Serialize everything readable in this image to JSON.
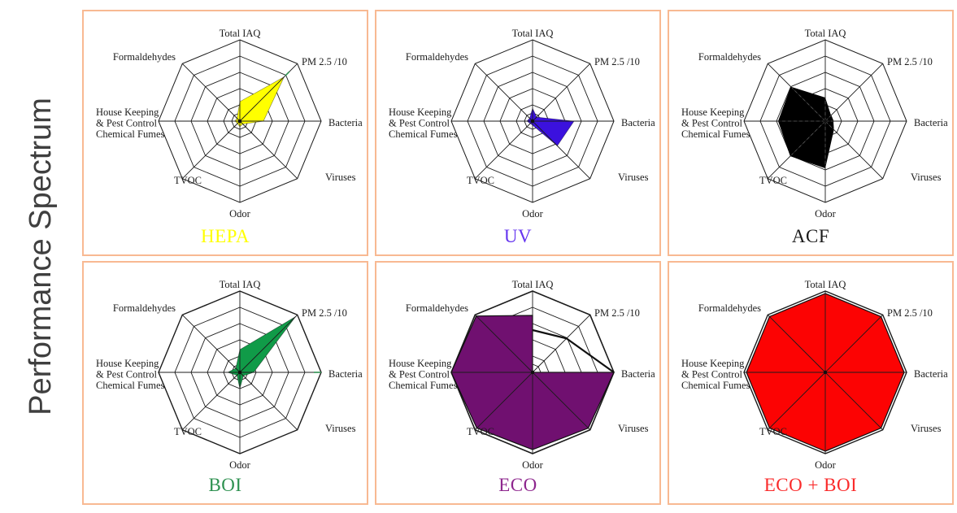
{
  "page": {
    "title_vertical": "Performance Spectrum"
  },
  "colors": {
    "panel_border": "#F8B992",
    "grid_line": "#1b1b1b",
    "side_title_text": "#3F3F3F",
    "background": "#FFFFFF"
  },
  "axes": [
    "Total IAQ",
    "PM 2.5 /10",
    "Bacteria",
    "Viruses",
    "Odor",
    "TVOC",
    "House Keeping\n& Pest Control\nChemical Fumes",
    "Formaldehydes"
  ],
  "chart_data": [
    {
      "type": "radar",
      "title": "HEPA",
      "fill": "#FFFF00",
      "label_color": "#FFFF00",
      "outline": "rgba(0,0,0,0.45)",
      "outline_w": 0.7,
      "outer_ring_w": 1.0,
      "max": 5,
      "rings": [
        0.5,
        1,
        2,
        3,
        4,
        5
      ],
      "values": [
        1.2,
        3.85,
        1.45,
        0.25,
        0.35,
        0.2,
        0.3,
        0.25
      ],
      "ticks": [
        {
          "axis": 1,
          "from": 3.95,
          "to": 4.3,
          "color": "#2E9150"
        }
      ]
    },
    {
      "type": "radar",
      "title": "UV",
      "fill": "#3B11DE",
      "label_color": "#6535EF",
      "outline": "rgba(0,0,0,0.45)",
      "outline_w": 0.7,
      "outer_ring_w": 1.0,
      "max": 5,
      "rings": [
        0.5,
        1,
        2,
        3,
        4,
        5
      ],
      "values": [
        0.8,
        0.35,
        2.55,
        2.15,
        0.25,
        0.2,
        0.35,
        0.25
      ],
      "ticks": []
    },
    {
      "type": "radar",
      "title": "ACF",
      "fill": "#000000",
      "label_color": "#1A1A1A",
      "outline": "none",
      "outline_w": 0,
      "outer_ring_w": 1.0,
      "white_dashes": true,
      "max": 5,
      "rings": [
        0.5,
        1,
        2,
        3,
        4,
        5
      ],
      "values": [
        1.45,
        0.5,
        0.5,
        0.75,
        2.9,
        3.05,
        2.9,
        3.0
      ],
      "ticks": []
    },
    {
      "type": "radar",
      "title": "BOI",
      "fill": "#109B48",
      "label_color": "#2E9150",
      "outline": "rgba(0,0,0,0.5)",
      "outline_w": 0.7,
      "outer_ring_w": 1.4,
      "max": 5,
      "rings": [
        0.5,
        1,
        2,
        3,
        4,
        5
      ],
      "values": [
        1.4,
        4.85,
        0.85,
        0.3,
        1.0,
        0.25,
        0.75,
        0.35
      ],
      "ticks": [
        {
          "axis": 2,
          "from": 4.55,
          "to": 5.0,
          "color": "#2E9150"
        }
      ]
    },
    {
      "type": "radar",
      "title": "ECO",
      "fill": "#701070",
      "label_color": "#8E278E",
      "outline": "#101010",
      "outline_w": 1.2,
      "outer_ring_w": 1.6,
      "max": 5,
      "rings": [
        0.5,
        1,
        2,
        3,
        4,
        5
      ],
      "values": [
        3.5,
        0,
        5,
        4.85,
        4.75,
        4.85,
        5,
        4.9
      ],
      "overlay": {
        "axes": [
          0,
          1,
          2
        ],
        "values": [
          2.6,
          2.95,
          5
        ],
        "color": "#101010",
        "width": 2.2
      },
      "ticks": []
    },
    {
      "type": "radar",
      "title": "ECO + BOI",
      "fill": "#FC0303",
      "label_color": "#FA2B2B",
      "outline": "#101010",
      "outline_w": 1.2,
      "outer_ring_w": 1.4,
      "max": 5,
      "rings": [
        0.5,
        1,
        2,
        3,
        4,
        5
      ],
      "values": [
        4.85,
        4.85,
        4.85,
        4.85,
        4.85,
        4.85,
        4.85,
        4.85
      ],
      "ticks": []
    }
  ]
}
